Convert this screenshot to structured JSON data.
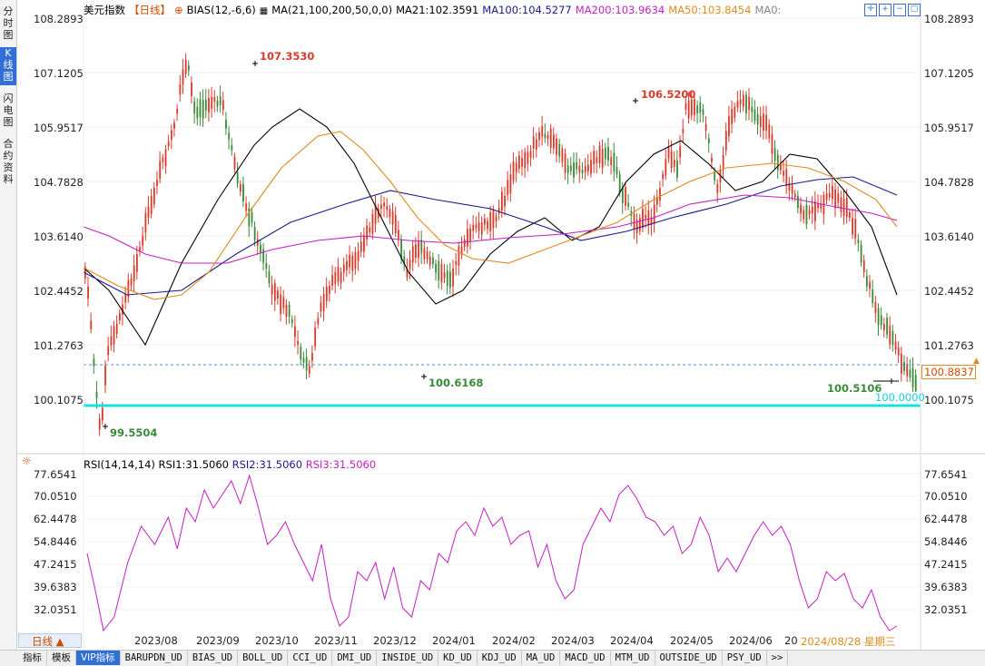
{
  "left_tabs": [
    {
      "label": "分时图",
      "active": false
    },
    {
      "label": "K线图",
      "active": true
    },
    {
      "label": "闪电图",
      "active": false
    },
    {
      "label": "合约资料",
      "active": false
    }
  ],
  "header": {
    "instrument": "美元指数",
    "period": "【日线】",
    "bias": "BIAS(12,-6,6)",
    "ma_params": "MA(21,100,200,50,0,0)",
    "ma21": "MA21:102.3591",
    "ma100": "MA100:104.5277",
    "ma200": "MA200:103.9634",
    "ma50": "MA50:103.8454",
    "ma0": "MA0:"
  },
  "price_axis": {
    "labels": [
      "108.2893",
      "107.1205",
      "105.9517",
      "104.7828",
      "103.6140",
      "102.4452",
      "101.2763",
      "100.1075"
    ],
    "current_price": "100.8837",
    "support_level": "100.0000"
  },
  "annotations": {
    "high1": "107.3530",
    "high2": "106.5200",
    "low1": "99.5504",
    "low2": "100.6168",
    "low3": "100.5106"
  },
  "rsi": {
    "header": "RSI(14,14,14)",
    "rsi1": "RSI1:31.5060",
    "rsi2": "RSI2:31.5060",
    "rsi3": "RSI3:31.5060",
    "axis_labels": [
      "77.6541",
      "70.0510",
      "62.4478",
      "54.8446",
      "47.2415",
      "39.6383",
      "32.0351"
    ]
  },
  "x_axis": {
    "labels": [
      "2023/08",
      "2023/09",
      "2023/10",
      "2023/11",
      "2023/12",
      "2024/01",
      "2024/02",
      "2024/03",
      "2024/04",
      "2024/05",
      "2024/06",
      "20"
    ],
    "cursor_date": "2024/08/28 星期三"
  },
  "period_button": {
    "label": "日线 ▲"
  },
  "bottom_tabs": [
    "指标",
    "模板",
    "VIP指标",
    "BARUPDN_UD",
    "BIAS_UD",
    "BOLL_UD",
    "CCI_UD",
    "DMI_UD",
    "INSIDE_UD",
    "KD_UD",
    "KDJ_UD",
    "MA_UD",
    "MACD_UD",
    "MTM_UD",
    "OUTSIDE_UD",
    "PSY_UD",
    ">>"
  ],
  "colors": {
    "up": "#d93a2b",
    "down": "#3a8a3a",
    "ma21": "#000000",
    "ma100": "#1a1a8c",
    "ma200": "#c21ec2",
    "ma50": "#e08a1e",
    "support": "#1ee6e6",
    "rsi": "#c21ec2"
  }
}
